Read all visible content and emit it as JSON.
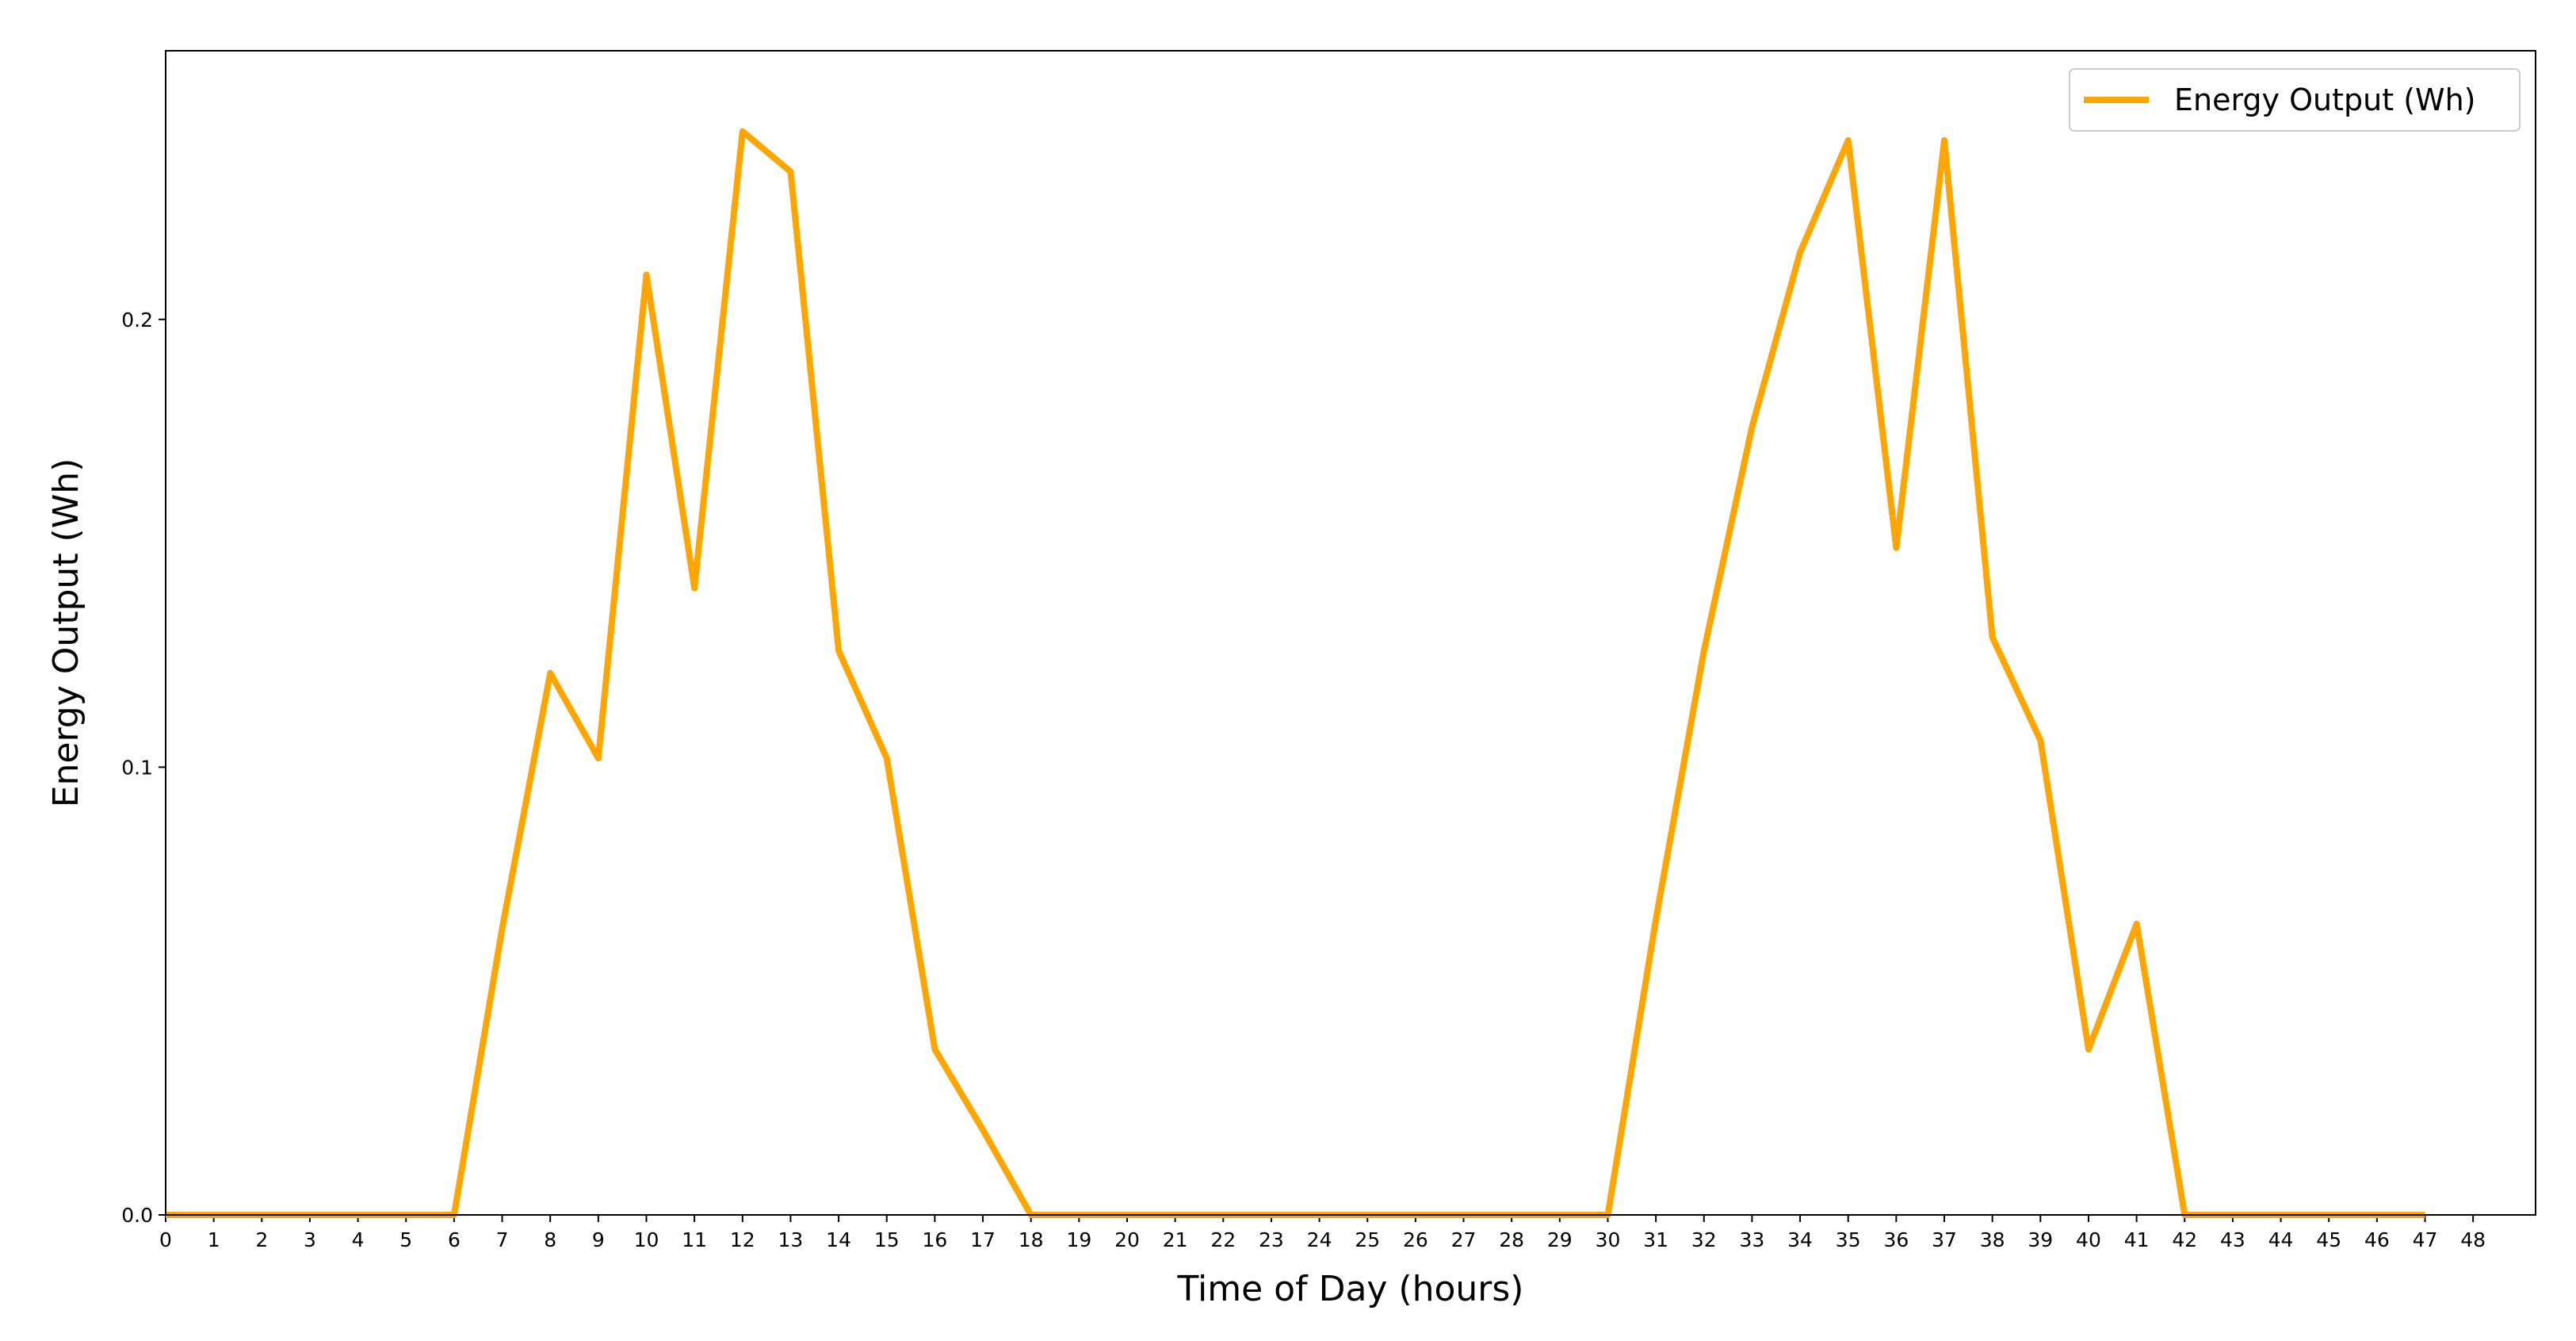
{
  "chart_data": {
    "type": "line",
    "xlabel": "Time of Day (hours)",
    "ylabel": "Energy Output (Wh)",
    "x": [
      0,
      1,
      2,
      3,
      4,
      5,
      6,
      7,
      8,
      9,
      10,
      11,
      12,
      13,
      14,
      15,
      16,
      17,
      18,
      19,
      20,
      21,
      22,
      23,
      24,
      25,
      26,
      27,
      28,
      29,
      30,
      31,
      32,
      33,
      34,
      35,
      36,
      37,
      38,
      39,
      40,
      41,
      42,
      43,
      44,
      45,
      46,
      47
    ],
    "series": [
      {
        "name": "Energy Output (Wh)",
        "color": "#ffa500",
        "values": [
          0,
          0,
          0,
          0,
          0,
          0,
          0,
          0.064,
          0.121,
          0.102,
          0.21,
          0.14,
          0.242,
          0.233,
          0.126,
          0.102,
          0.037,
          0.019,
          0,
          0,
          0,
          0,
          0,
          0,
          0,
          0,
          0,
          0,
          0,
          0,
          0,
          0.066,
          0.126,
          0.176,
          0.215,
          0.24,
          0.149,
          0.24,
          0.129,
          0.106,
          0.037,
          0.065,
          0,
          0,
          0,
          0,
          0,
          0
        ]
      }
    ],
    "xlim": [
      0,
      49.3
    ],
    "xticks": [
      0,
      1,
      2,
      3,
      4,
      5,
      6,
      7,
      8,
      9,
      10,
      11,
      12,
      13,
      14,
      15,
      16,
      17,
      18,
      19,
      20,
      21,
      22,
      23,
      24,
      25,
      26,
      27,
      28,
      29,
      30,
      31,
      32,
      33,
      34,
      35,
      36,
      37,
      38,
      39,
      40,
      41,
      42,
      43,
      44,
      45,
      46,
      47,
      48
    ],
    "ylim": [
      0,
      0.26
    ],
    "yticks": [
      {
        "value": 0,
        "label": "0.0"
      },
      0.1,
      0.2
    ],
    "grid": false,
    "legend": "upper-right"
  }
}
